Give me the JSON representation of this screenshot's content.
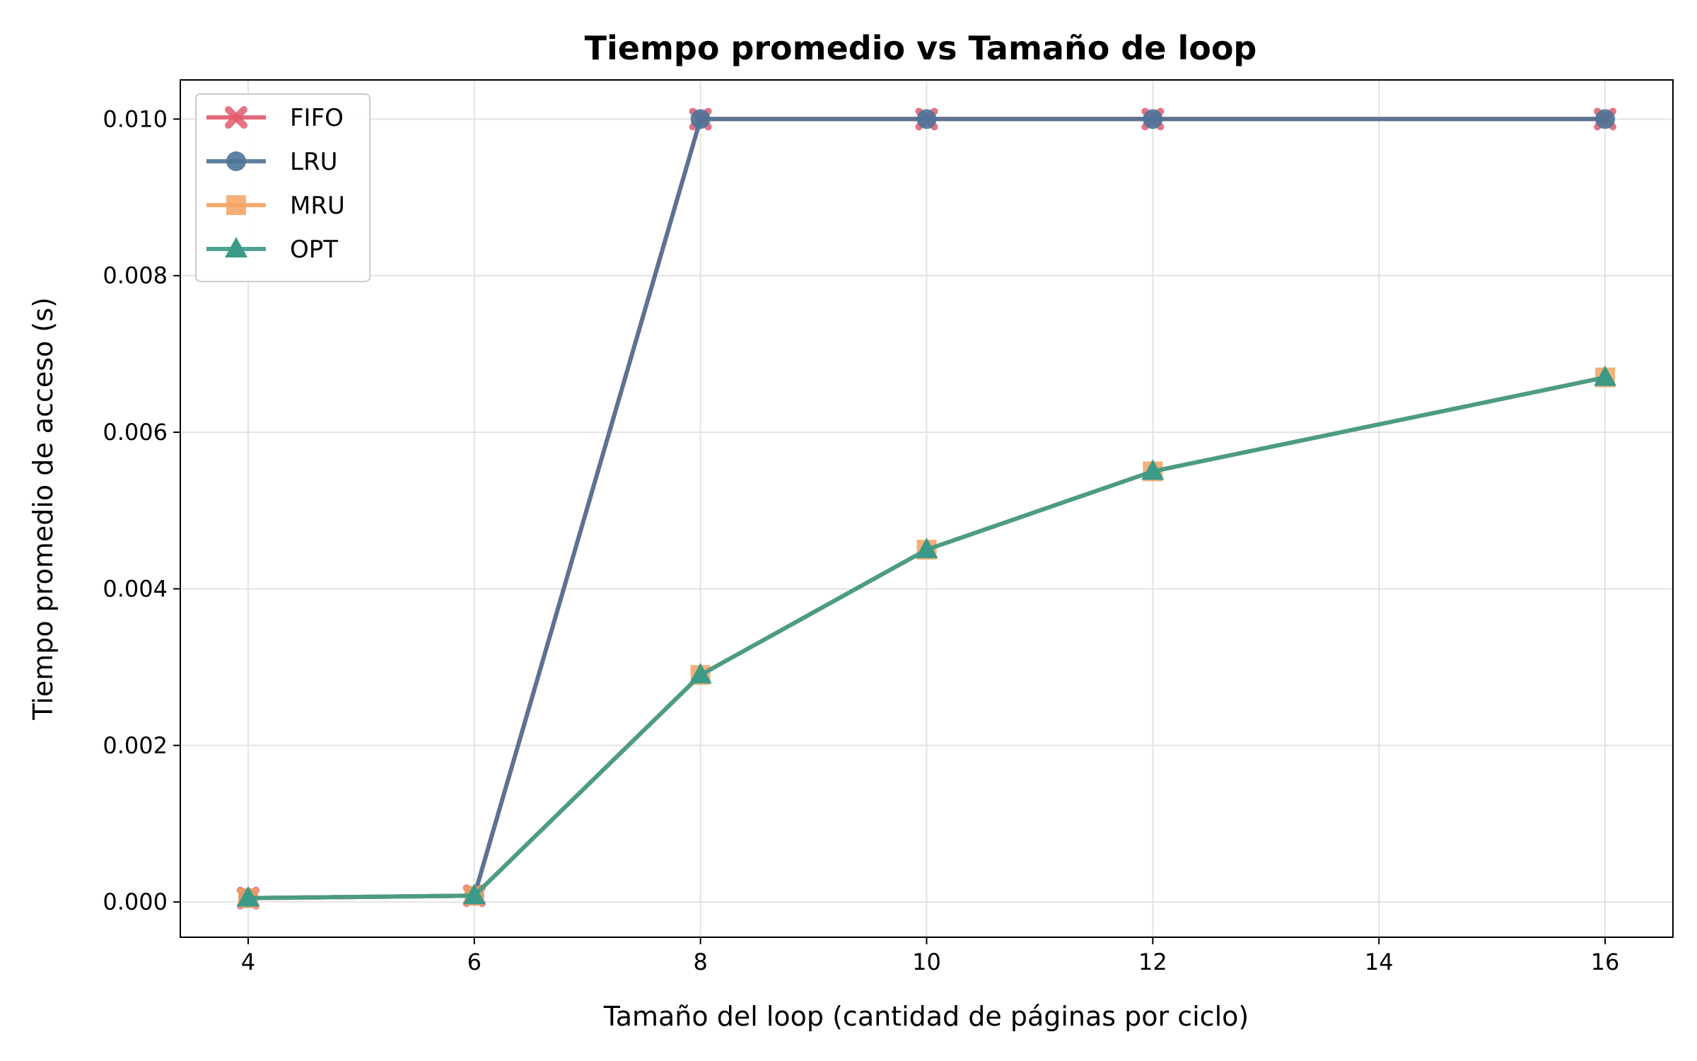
{
  "chart_data": {
    "type": "line",
    "title": "Tiempo promedio vs Tamaño de loop",
    "xlabel": "Tamaño del loop (cantidad de páginas por ciclo)",
    "ylabel": "Tiempo promedio de acceso (s)",
    "x": [
      4,
      6,
      8,
      10,
      12,
      16
    ],
    "xlim": [
      3.4,
      16.6
    ],
    "ylim": [
      -0.00045,
      0.0105
    ],
    "xticks": [
      4,
      6,
      8,
      10,
      12,
      14,
      16
    ],
    "yticks": [
      0.0,
      0.002,
      0.004,
      0.006,
      0.008,
      0.01
    ],
    "xtick_labels": [
      "4",
      "6",
      "8",
      "10",
      "12",
      "14",
      "16"
    ],
    "ytick_labels": [
      "0.000",
      "0.002",
      "0.004",
      "0.006",
      "0.008",
      "0.010"
    ],
    "grid": true,
    "legend_position": "top-left",
    "series": [
      {
        "name": "FIFO",
        "values": [
          5e-05,
          8e-05,
          0.01,
          0.01,
          0.01,
          0.01
        ],
        "color": "#e05a6d",
        "marker": "x"
      },
      {
        "name": "LRU",
        "values": [
          5e-05,
          8e-05,
          0.01,
          0.01,
          0.01,
          0.01
        ],
        "color": "#4d7398",
        "marker": "circle"
      },
      {
        "name": "MRU",
        "values": [
          5e-05,
          8e-05,
          0.0029,
          0.0045,
          0.0055,
          0.0067
        ],
        "color": "#f4a261",
        "marker": "square"
      },
      {
        "name": "OPT",
        "values": [
          5e-05,
          8e-05,
          0.0029,
          0.0045,
          0.0055,
          0.0067
        ],
        "color": "#3a9a87",
        "marker": "triangle"
      }
    ]
  }
}
